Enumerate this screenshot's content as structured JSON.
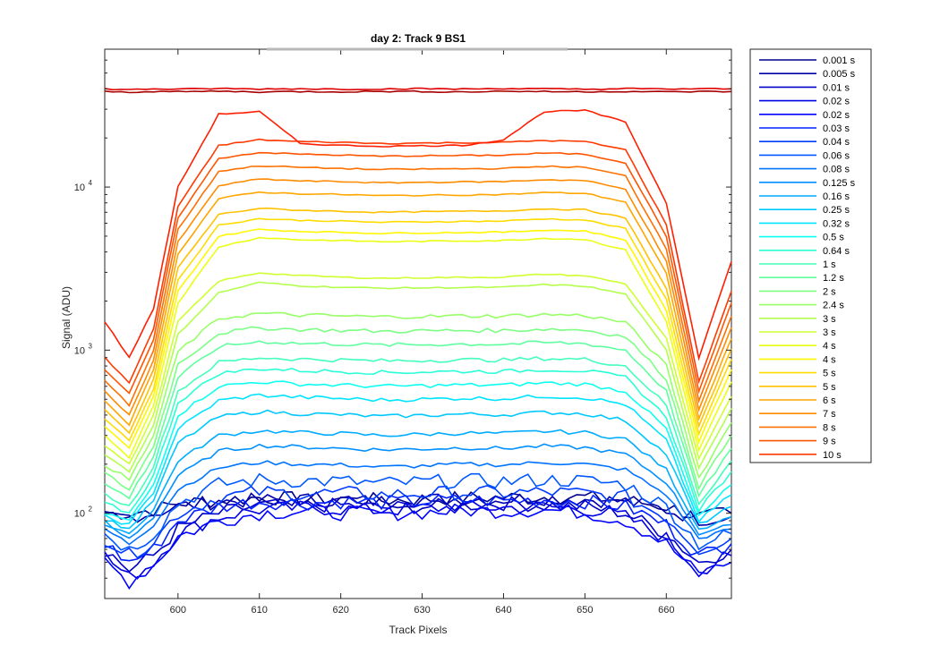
{
  "chart_data": {
    "type": "line",
    "title": "day 2: Track 9  BS1",
    "xlabel": "Track Pixels",
    "ylabel": "Signal (ADU)",
    "xlim": [
      591,
      668
    ],
    "ylim": [
      30,
      70000
    ],
    "yscale": "log",
    "x_ticks": [
      "600",
      "610",
      "620",
      "630",
      "640",
      "650",
      "660"
    ],
    "y_ticks": [
      {
        "base": "10",
        "exp": "2",
        "value": 100
      },
      {
        "base": "10",
        "exp": "3",
        "value": 1000
      },
      {
        "base": "10",
        "exp": "4",
        "value": 10000
      }
    ],
    "legend_position": "outside-right",
    "grid": false,
    "x": [
      591,
      594,
      597,
      600,
      605,
      610,
      615,
      620,
      625,
      630,
      635,
      640,
      645,
      650,
      655,
      660,
      664,
      668
    ],
    "series": [
      {
        "name": "0.001 s",
        "color": "#00008f",
        "values": [
          100,
          100,
          105,
          115,
          120,
          125,
          122,
          123,
          120,
          122,
          124,
          125,
          126,
          125,
          120,
          110,
          95,
          100
        ]
      },
      {
        "name": "0.005 s",
        "color": "#0000ac",
        "values": [
          95,
          96,
          100,
          110,
          118,
          120,
          121,
          120,
          118,
          121,
          123,
          122,
          124,
          122,
          118,
          105,
          92,
          95
        ]
      },
      {
        "name": "0.01 s",
        "color": "#0000c8",
        "values": [
          60,
          45,
          55,
          80,
          100,
          112,
          110,
          112,
          108,
          110,
          112,
          115,
          112,
          110,
          100,
          75,
          50,
          60
        ]
      },
      {
        "name": "0.02 s",
        "color": "#0000e4",
        "values": [
          55,
          40,
          50,
          75,
          95,
          105,
          108,
          106,
          104,
          107,
          109,
          108,
          110,
          106,
          95,
          70,
          45,
          55
        ]
      },
      {
        "name": "0.02 s",
        "color": "#0004ff",
        "values": [
          50,
          38,
          48,
          72,
          90,
          100,
          103,
          100,
          99,
          101,
          104,
          103,
          105,
          101,
          90,
          65,
          42,
          50
        ]
      },
      {
        "name": "0.03 s",
        "color": "#0020ff",
        "values": [
          65,
          50,
          60,
          90,
          110,
          118,
          115,
          118,
          116,
          118,
          120,
          119,
          121,
          118,
          110,
          85,
          55,
          65
        ]
      },
      {
        "name": "0.04 s",
        "color": "#003cff",
        "values": [
          70,
          55,
          68,
          100,
          125,
          135,
          132,
          133,
          130,
          132,
          134,
          133,
          135,
          132,
          125,
          95,
          60,
          70
        ]
      },
      {
        "name": "0.06 s",
        "color": "#0058ff",
        "values": [
          75,
          60,
          75,
          115,
          150,
          160,
          158,
          157,
          152,
          155,
          158,
          157,
          160,
          158,
          150,
          110,
          65,
          75
        ]
      },
      {
        "name": "0.08 s",
        "color": "#0074ff",
        "values": [
          80,
          65,
          85,
          140,
          190,
          205,
          200,
          198,
          192,
          195,
          200,
          198,
          205,
          200,
          185,
          130,
          70,
          80
        ]
      },
      {
        "name": "0.125 s",
        "color": "#0090ff",
        "values": [
          85,
          70,
          95,
          170,
          240,
          260,
          255,
          250,
          245,
          248,
          252,
          250,
          258,
          252,
          230,
          155,
          75,
          85
        ]
      },
      {
        "name": "0.16 s",
        "color": "#00acff",
        "values": [
          88,
          75,
          105,
          210,
          300,
          320,
          312,
          308,
          300,
          305,
          310,
          308,
          318,
          312,
          285,
          185,
          80,
          95
        ]
      },
      {
        "name": "0.25 s",
        "color": "#00c8ff",
        "values": [
          92,
          80,
          120,
          270,
          390,
          420,
          408,
          402,
          392,
          398,
          405,
          402,
          415,
          408,
          370,
          230,
          85,
          110
        ]
      },
      {
        "name": "0.32 s",
        "color": "#00e4ff",
        "values": [
          95,
          85,
          135,
          330,
          490,
          530,
          515,
          505,
          495,
          500,
          508,
          505,
          522,
          512,
          465,
          280,
          90,
          130
        ]
      },
      {
        "name": "0.5 s",
        "color": "#0cfff2",
        "values": [
          100,
          90,
          150,
          400,
          600,
          640,
          620,
          610,
          600,
          605,
          612,
          610,
          630,
          618,
          560,
          330,
          95,
          150
        ]
      },
      {
        "name": "0.64 s",
        "color": "#28ffd7",
        "values": [
          115,
          100,
          170,
          480,
          720,
          770,
          750,
          740,
          730,
          735,
          742,
          740,
          760,
          748,
          680,
          390,
          105,
          180
        ]
      },
      {
        "name": "1 s",
        "color": "#43ffbc",
        "values": [
          130,
          110,
          195,
          560,
          840,
          900,
          880,
          870,
          860,
          865,
          872,
          870,
          890,
          878,
          800,
          460,
          115,
          210
        ]
      },
      {
        "name": "1.2 s",
        "color": "#5fffa0",
        "values": [
          150,
          125,
          225,
          680,
          1050,
          1130,
          1100,
          1090,
          1075,
          1082,
          1090,
          1088,
          1112,
          1098,
          1000,
          560,
          128,
          250
        ]
      },
      {
        "name": "2 s",
        "color": "#7bff84",
        "values": [
          175,
          140,
          260,
          820,
          1270,
          1370,
          1340,
          1320,
          1305,
          1312,
          1322,
          1318,
          1348,
          1330,
          1210,
          670,
          145,
          300
        ]
      },
      {
        "name": "2.4 s",
        "color": "#97ff68",
        "values": [
          200,
          160,
          300,
          980,
          1560,
          1680,
          1640,
          1620,
          1600,
          1610,
          1622,
          1618,
          1655,
          1632,
          1480,
          800,
          165,
          360
        ]
      },
      {
        "name": "3 s",
        "color": "#b3ff4c",
        "values": [
          230,
          180,
          350,
          1250,
          2250,
          2600,
          2480,
          2430,
          2400,
          2410,
          2420,
          2430,
          2520,
          2470,
          2200,
          1000,
          190,
          440
        ]
      },
      {
        "name": "3 s",
        "color": "#cfff30",
        "values": [
          260,
          200,
          400,
          1500,
          2650,
          2980,
          2870,
          2800,
          2760,
          2780,
          2795,
          2805,
          2920,
          2860,
          2550,
          1180,
          215,
          520
        ]
      },
      {
        "name": "4 s",
        "color": "#ebff14",
        "values": [
          300,
          220,
          460,
          1950,
          4300,
          4900,
          4750,
          4700,
          4620,
          4650,
          4680,
          4700,
          4850,
          4780,
          4100,
          1500,
          245,
          640
        ]
      },
      {
        "name": "4 s",
        "color": "#fff700",
        "values": [
          340,
          250,
          520,
          2300,
          5000,
          5500,
          5350,
          5280,
          5200,
          5240,
          5270,
          5290,
          5450,
          5380,
          4750,
          1750,
          275,
          760
        ]
      },
      {
        "name": "5 s",
        "color": "#ffdc00",
        "values": [
          380,
          280,
          580,
          2700,
          5850,
          6400,
          6250,
          6180,
          6080,
          6120,
          6160,
          6190,
          6380,
          6280,
          5550,
          2050,
          305,
          880
        ]
      },
      {
        "name": "5 s",
        "color": "#ffc100",
        "values": [
          430,
          310,
          660,
          3200,
          6800,
          7400,
          7200,
          7100,
          7000,
          7050,
          7100,
          7150,
          7350,
          7250,
          6450,
          2400,
          340,
          1020
        ]
      },
      {
        "name": "6 s",
        "color": "#ffa600",
        "values": [
          490,
          350,
          760,
          3900,
          8500,
          9300,
          9100,
          9000,
          8850,
          8900,
          8950,
          9000,
          9250,
          9150,
          8100,
          2950,
          380,
          1180
        ]
      },
      {
        "name": "7 s",
        "color": "#ff8b00",
        "values": [
          560,
          400,
          870,
          4600,
          10200,
          11200,
          10900,
          10800,
          10600,
          10700,
          10750,
          10800,
          11100,
          10950,
          9700,
          3500,
          430,
          1380
        ]
      },
      {
        "name": "8 s",
        "color": "#ff7000",
        "values": [
          650,
          460,
          1000,
          5500,
          12500,
          13500,
          13200,
          13000,
          12800,
          12900,
          12950,
          13000,
          13400,
          13200,
          11700,
          4200,
          490,
          1620
        ]
      },
      {
        "name": "9 s",
        "color": "#ff5500",
        "values": [
          760,
          540,
          1160,
          6500,
          15000,
          16300,
          15900,
          15700,
          15450,
          15550,
          15600,
          15700,
          16150,
          15900,
          14100,
          5000,
          560,
          1950
        ]
      },
      {
        "name": "10 s",
        "color": "#ff3a00",
        "values": [
          900,
          630,
          1350,
          7600,
          18000,
          19500,
          19000,
          18800,
          18500,
          18600,
          18700,
          18800,
          19300,
          19000,
          16900,
          5900,
          640,
          2300
        ]
      }
    ],
    "extra_series": [
      {
        "color": "#ff1f00",
        "values": [
          1500,
          900,
          1800,
          10000,
          28000,
          29000,
          18500,
          18000,
          17800,
          17900,
          18000,
          19500,
          29000,
          29500,
          25000,
          8000,
          900,
          3500
        ]
      },
      {
        "color": "#e00000",
        "values": [
          40000,
          39500,
          40000,
          39800,
          40200,
          39900,
          40100,
          39800,
          40000,
          40100,
          39900,
          40200,
          40000,
          39800,
          40100,
          39900,
          40000,
          40000
        ]
      },
      {
        "color": "#a80000",
        "values": [
          38500,
          38200,
          38600,
          38400,
          38700,
          38300,
          38500,
          38400,
          38600,
          38500,
          38300,
          38700,
          38500,
          38400,
          38600,
          38300,
          38500,
          38500
        ]
      }
    ]
  }
}
